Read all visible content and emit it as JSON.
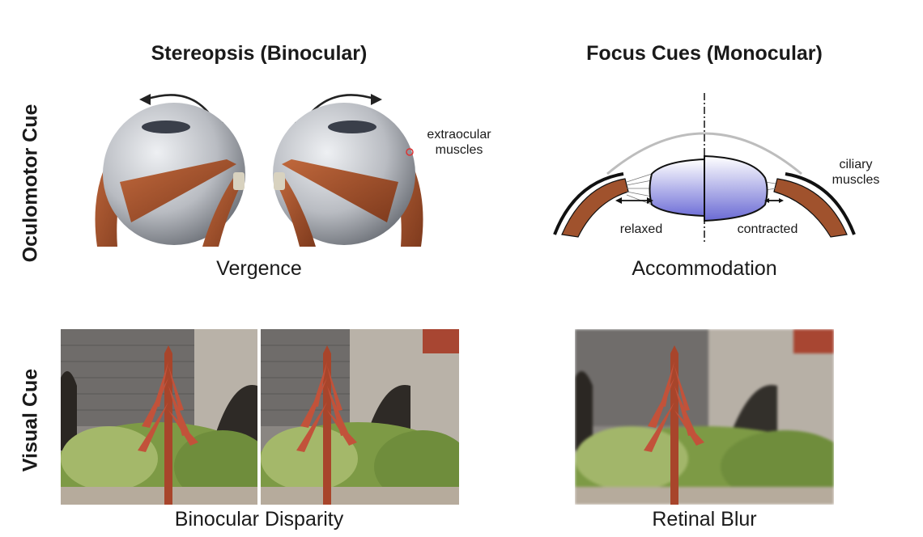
{
  "columns": {
    "left_title": "Stereopsis (Binocular)",
    "right_title": "Focus Cues (Monocular)"
  },
  "rows": {
    "top_label": "Oculomotor Cue",
    "bottom_label": "Visual Cue"
  },
  "captions": {
    "vergence": "Vergence",
    "accommodation": "Accommodation",
    "binocular_disparity": "Binocular Disparity",
    "retinal_blur": "Retinal Blur"
  },
  "annotations": {
    "extraocular_line1": "extraocular",
    "extraocular_line2": "muscles",
    "ciliary_line1": "ciliary",
    "ciliary_line2": "muscles",
    "relaxed": "relaxed",
    "contracted": "contracted"
  },
  "colors": {
    "muscle": "#a0522d",
    "eyeball": "#b9bcc2",
    "lens": "#6b6bd6",
    "arrow": "#222222"
  },
  "icons": {
    "vergence_arrows": "curved-double-arrow",
    "lens_arrows": "double-headed-arrow"
  }
}
